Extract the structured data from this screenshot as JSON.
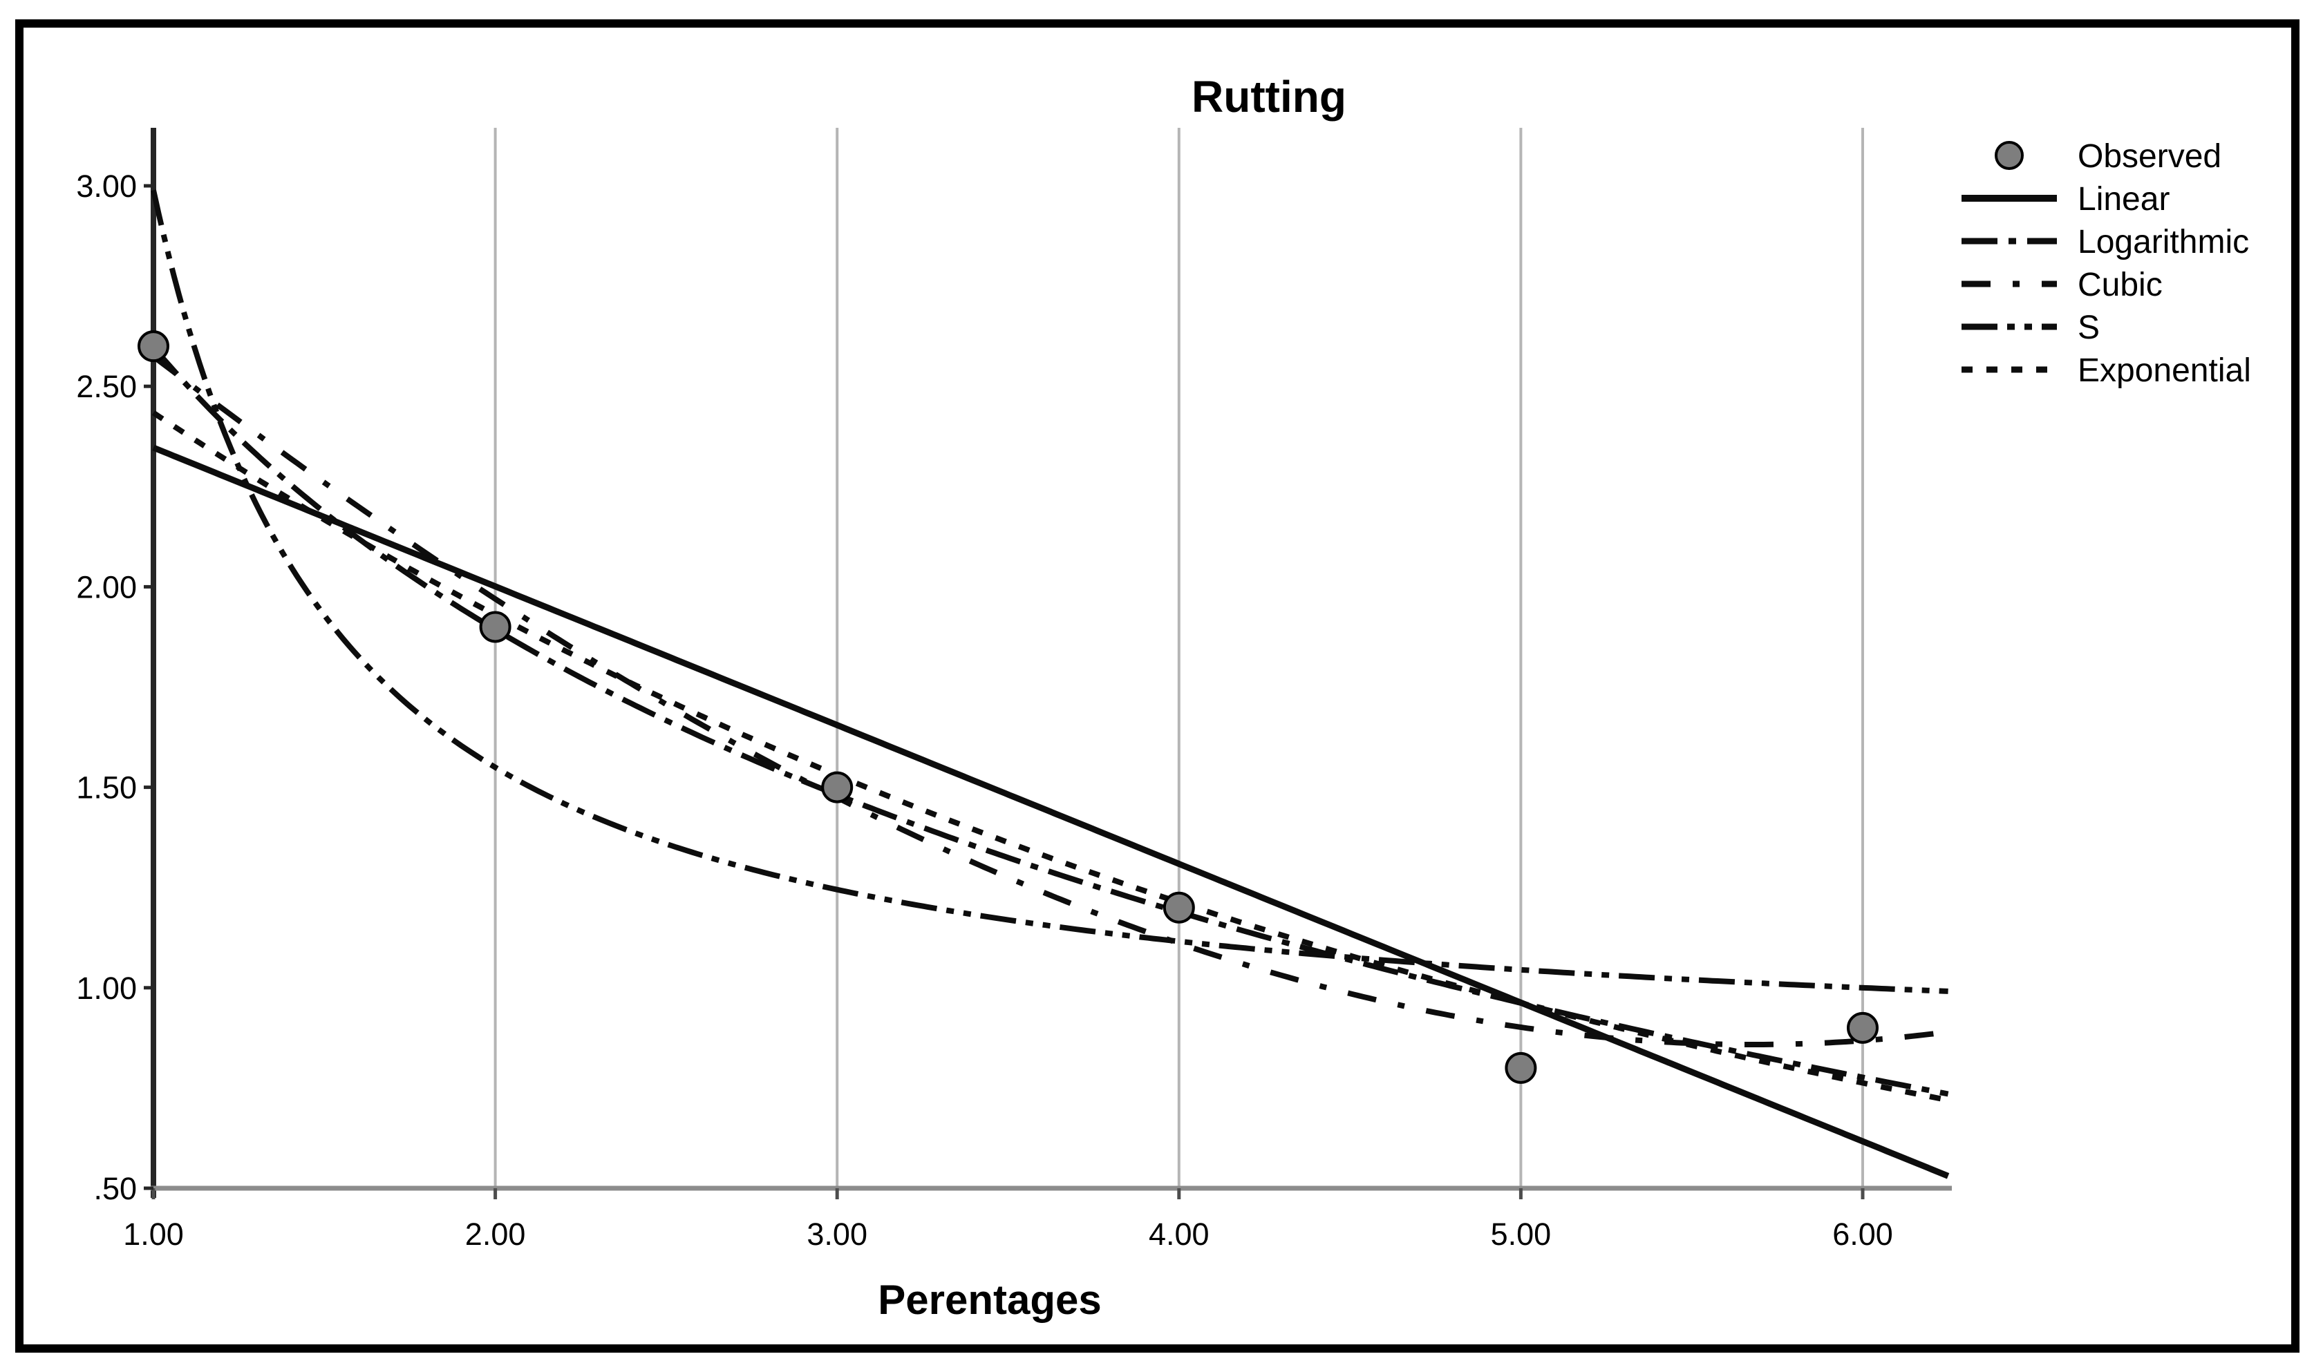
{
  "chart_data": {
    "type": "scatter",
    "subtype": "curve-estimation-fit-plot",
    "title": "Rutting",
    "xlabel": "Perentages",
    "ylabel": "",
    "xlim": [
      1.0,
      6.25
    ],
    "ylim": [
      0.5,
      3.145
    ],
    "grid": "vertical-gridlines-only",
    "legend_position": "top-right",
    "x_ticks": [
      {
        "value": 1,
        "label": "1.00"
      },
      {
        "value": 2,
        "label": "2.00"
      },
      {
        "value": 3,
        "label": "3.00"
      },
      {
        "value": 4,
        "label": "4.00"
      },
      {
        "value": 5,
        "label": "5.00"
      },
      {
        "value": 6,
        "label": "6.00"
      }
    ],
    "y_ticks": [
      {
        "value": 3.0,
        "label": "3.00"
      },
      {
        "value": 2.5,
        "label": "2.50"
      },
      {
        "value": 2.0,
        "label": "2.00"
      },
      {
        "value": 1.5,
        "label": "1.50"
      },
      {
        "value": 1.0,
        "label": "1.00"
      },
      {
        "value": 0.5,
        "label": ".50"
      }
    ],
    "observed": {
      "label": "Observed",
      "marker": "filled-circle",
      "marker_fill": "#7e7e7e",
      "marker_stroke": "#000000",
      "x": [
        1.0,
        2.0,
        3.0,
        4.0,
        5.0,
        6.0
      ],
      "y": [
        2.6,
        1.9,
        1.5,
        1.2,
        0.8,
        0.9
      ]
    },
    "fit_lines": [
      {
        "label": "Linear",
        "model": "linear",
        "dash": "solid",
        "params": {
          "a": 2.693,
          "b": -0.346
        }
      },
      {
        "label": "Logarithmic",
        "model": "logarithmic",
        "dash": "dash-dot",
        "params": {
          "a": 2.598,
          "b": -1.0165
        }
      },
      {
        "label": "Cubic",
        "model": "cubic",
        "dash": "dash-gap-dot",
        "params": {
          "b0": 3.2665,
          "b1": -0.7283,
          "b2": 0.03254,
          "b3": 0.003704
        }
      },
      {
        "label": "S",
        "model": "s",
        "dash": "dash-dot-dot",
        "params": {
          "a": -0.219,
          "b": 1.314
        }
      },
      {
        "label": "Exponential",
        "model": "exponential",
        "dash": "dotted",
        "params": {
          "a": 3.07,
          "b": -0.2321
        }
      }
    ]
  },
  "colors": {
    "curve": "#0d0d0d",
    "gridline": "#b5b5b5",
    "x_axis": "#8c8c8c",
    "y_axis": "#262626",
    "tick": "#4d4d4d",
    "observed_fill": "#7e7e7e",
    "text": "#000000",
    "frame_border": "#000000"
  }
}
